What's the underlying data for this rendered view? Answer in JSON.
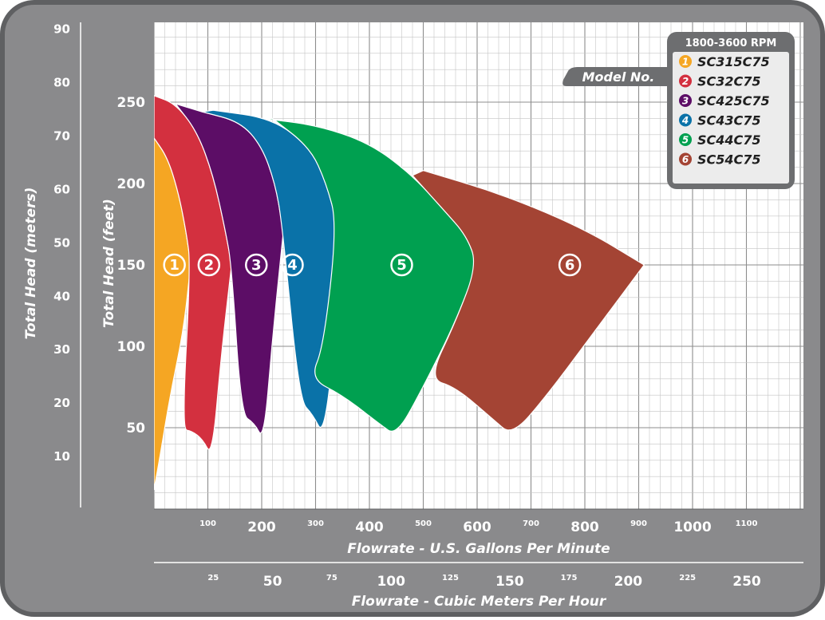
{
  "chart_data": {
    "type": "area",
    "title": "",
    "xlabel": "Flowrate - U.S. Gallons Per Minute",
    "xlabel2": "Flowrate - Cubic Meters Per Hour",
    "ylabel": "Total Head (feet)",
    "ylabel2": "Total Head (meters)",
    "xlim": [
      0,
      1200
    ],
    "ylim": [
      0,
      300
    ],
    "x_ticks_major": [
      {
        "v": 200,
        "label": "200"
      },
      {
        "v": 400,
        "label": "400"
      },
      {
        "v": 600,
        "label": "600"
      },
      {
        "v": 800,
        "label": "800"
      },
      {
        "v": 1000,
        "label": "1000"
      }
    ],
    "x_ticks_minor": [
      {
        "v": 100,
        "label": "100"
      },
      {
        "v": 300,
        "label": "300"
      },
      {
        "v": 500,
        "label": "500"
      },
      {
        "v": 700,
        "label": "700"
      },
      {
        "v": 900,
        "label": "900"
      },
      {
        "v": 1100,
        "label": "1100"
      }
    ],
    "x2_ticks_major": [
      {
        "v": 50,
        "label": "50"
      },
      {
        "v": 100,
        "label": "100"
      },
      {
        "v": 150,
        "label": "150"
      },
      {
        "v": 200,
        "label": "200"
      },
      {
        "v": 250,
        "label": "250"
      }
    ],
    "x2_ticks_minor": [
      {
        "v": 25,
        "label": "25"
      },
      {
        "v": 75,
        "label": "75"
      },
      {
        "v": 125,
        "label": "125"
      },
      {
        "v": 175,
        "label": "175"
      },
      {
        "v": 225,
        "label": "225"
      }
    ],
    "y_ticks": [
      {
        "v": 50,
        "label": "50"
      },
      {
        "v": 100,
        "label": "100"
      },
      {
        "v": 150,
        "label": "150"
      },
      {
        "v": 200,
        "label": "200"
      },
      {
        "v": 250,
        "label": "250"
      }
    ],
    "y2_ticks": [
      {
        "v": 10,
        "label": "10"
      },
      {
        "v": 20,
        "label": "20"
      },
      {
        "v": 30,
        "label": "30"
      },
      {
        "v": 40,
        "label": "40"
      },
      {
        "v": 50,
        "label": "50"
      },
      {
        "v": 60,
        "label": "60"
      },
      {
        "v": 70,
        "label": "70"
      },
      {
        "v": 80,
        "label": "80"
      },
      {
        "v": 90,
        "label": "90"
      }
    ],
    "grid": true,
    "legend": {
      "position": "top-right",
      "header": "1800-3600 RPM",
      "tag": "Model No."
    },
    "series": [
      {
        "name": "SC315C75",
        "marker": "1",
        "color": "#f5a623",
        "curve_top": [
          [
            0,
            228
          ],
          [
            25,
            216
          ],
          [
            45,
            195
          ],
          [
            60,
            170
          ],
          [
            68,
            150
          ]
        ],
        "curve_bottom": [
          [
            68,
            150
          ],
          [
            55,
            110
          ],
          [
            30,
            70
          ],
          [
            10,
            30
          ],
          [
            0,
            12
          ]
        ],
        "label_at": [
          38,
          150
        ]
      },
      {
        "name": "SC32C75",
        "marker": "2",
        "color": "#d3303f",
        "curve_top": [
          [
            0,
            254
          ],
          [
            40,
            249
          ],
          [
            80,
            232
          ],
          [
            110,
            205
          ],
          [
            132,
            172
          ],
          [
            144,
            150
          ]
        ],
        "curve_bottom": [
          [
            144,
            150
          ],
          [
            125,
            95
          ],
          [
            108,
            32
          ],
          [
            90,
            43
          ],
          [
            70,
            48
          ],
          [
            52,
            49
          ],
          [
            68,
            150
          ],
          [
            60,
            170
          ],
          [
            45,
            195
          ],
          [
            25,
            216
          ],
          [
            0,
            228
          ]
        ],
        "label_at": [
          102,
          150
        ]
      },
      {
        "name": "SC425C75",
        "marker": "3",
        "color": "#5c0d66",
        "curve_top": [
          [
            90,
            244
          ],
          [
            160,
            238
          ],
          [
            200,
            223
          ],
          [
            225,
            200
          ],
          [
            238,
            175
          ],
          [
            240,
            170
          ]
        ],
        "curve_bottom": [
          [
            240,
            170
          ],
          [
            220,
            105
          ],
          [
            204,
            42
          ],
          [
            186,
            53
          ],
          [
            162,
            58
          ],
          [
            144,
            150
          ],
          [
            132,
            172
          ],
          [
            110,
            205
          ],
          [
            80,
            232
          ],
          [
            40,
            249
          ]
        ],
        "label_at": [
          190,
          150
        ]
      },
      {
        "name": "SC43C75",
        "marker": "4",
        "color": "#0a72a8",
        "curve_top": [
          [
            110,
            245
          ],
          [
            220,
            240
          ],
          [
            290,
            222
          ],
          [
            320,
            200
          ],
          [
            340,
            175
          ],
          [
            350,
            160
          ],
          [
            360,
            150
          ]
        ],
        "curve_bottom": [
          [
            360,
            150
          ],
          [
            355,
            135
          ],
          [
            335,
            100
          ],
          [
            315,
            45
          ],
          [
            295,
            58
          ],
          [
            270,
            67
          ],
          [
            238,
            175
          ],
          [
            225,
            200
          ],
          [
            200,
            223
          ],
          [
            160,
            238
          ],
          [
            90,
            244
          ]
        ],
        "label_at": [
          257,
          150
        ]
      },
      {
        "name": "SC44C75",
        "marker": "5",
        "color": "#00a050",
        "curve_top": [
          [
            200,
            240
          ],
          [
            300,
            236
          ],
          [
            400,
            225
          ],
          [
            480,
            205
          ],
          [
            540,
            183
          ],
          [
            580,
            168
          ],
          [
            600,
            150
          ]
        ],
        "curve_bottom": [
          [
            600,
            150
          ],
          [
            560,
            115
          ],
          [
            500,
            75
          ],
          [
            450,
            45
          ],
          [
            420,
            52
          ],
          [
            350,
            70
          ],
          [
            290,
            80
          ],
          [
            315,
            100
          ],
          [
            340,
            175
          ],
          [
            320,
            200
          ],
          [
            290,
            222
          ],
          [
            220,
            240
          ]
        ],
        "label_at": [
          460,
          150
        ]
      },
      {
        "name": "SC54C75",
        "marker": "6",
        "color": "#a44434",
        "curve_top": [
          [
            500,
            208
          ],
          [
            650,
            193
          ],
          [
            800,
            172
          ],
          [
            910,
            150
          ]
        ],
        "curve_bottom": [
          [
            910,
            150
          ],
          [
            820,
            110
          ],
          [
            730,
            70
          ],
          [
            665,
            45
          ],
          [
            630,
            55
          ],
          [
            560,
            75
          ],
          [
            510,
            80
          ],
          [
            560,
            115
          ],
          [
            600,
            150
          ],
          [
            580,
            168
          ],
          [
            540,
            183
          ],
          [
            480,
            205
          ]
        ],
        "label_at": [
          772,
          150
        ]
      }
    ]
  }
}
